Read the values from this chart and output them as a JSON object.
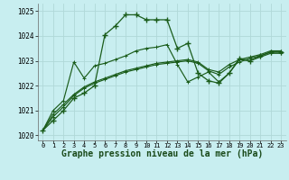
{
  "title": "Graphe pression niveau de la mer (hPa)",
  "bg_color": "#c8eef0",
  "grid_color": "#b0d8d8",
  "line_color": "#1a5c1a",
  "xlim": [
    -0.5,
    23.5
  ],
  "ylim": [
    1019.8,
    1025.3
  ],
  "yticks": [
    1020,
    1021,
    1022,
    1023,
    1024,
    1025
  ],
  "xticks": [
    0,
    1,
    2,
    3,
    4,
    5,
    6,
    7,
    8,
    9,
    10,
    11,
    12,
    13,
    14,
    15,
    16,
    17,
    18,
    19,
    20,
    21,
    22,
    23
  ],
  "series": [
    [
      1020.2,
      1020.6,
      1021.0,
      1021.5,
      1021.7,
      1022.0,
      1024.05,
      1024.4,
      1024.85,
      1024.85,
      1024.65,
      1024.65,
      1024.65,
      1023.5,
      1023.7,
      1022.5,
      1022.2,
      1022.1,
      1022.5,
      1023.1,
      1023.0,
      1023.2,
      1023.35,
      1023.35
    ],
    [
      1020.2,
      1020.75,
      1021.15,
      1021.6,
      1021.9,
      1022.1,
      1022.25,
      1022.4,
      1022.55,
      1022.65,
      1022.75,
      1022.85,
      1022.9,
      1022.95,
      1023.0,
      1022.9,
      1022.6,
      1022.45,
      1022.75,
      1022.95,
      1023.1,
      1023.2,
      1023.35,
      1023.35
    ],
    [
      1020.2,
      1020.85,
      1021.25,
      1021.65,
      1021.95,
      1022.15,
      1022.3,
      1022.45,
      1022.6,
      1022.7,
      1022.8,
      1022.9,
      1022.95,
      1023.0,
      1023.05,
      1022.95,
      1022.65,
      1022.55,
      1022.85,
      1023.05,
      1023.15,
      1023.25,
      1023.4,
      1023.4
    ],
    [
      1020.2,
      1021.0,
      1021.4,
      1022.95,
      1022.3,
      1022.8,
      1022.9,
      1023.05,
      1023.2,
      1023.4,
      1023.5,
      1023.55,
      1023.65,
      1022.85,
      1022.15,
      1022.35,
      1022.55,
      1022.15,
      1022.5,
      1023.05,
      1023.0,
      1023.15,
      1023.3,
      1023.3
    ]
  ],
  "marker": "+",
  "markersize": 4,
  "linewidth": 0.9,
  "title_fontsize": 7,
  "tick_fontsize": 5,
  "ylabel_fontsize": 6
}
